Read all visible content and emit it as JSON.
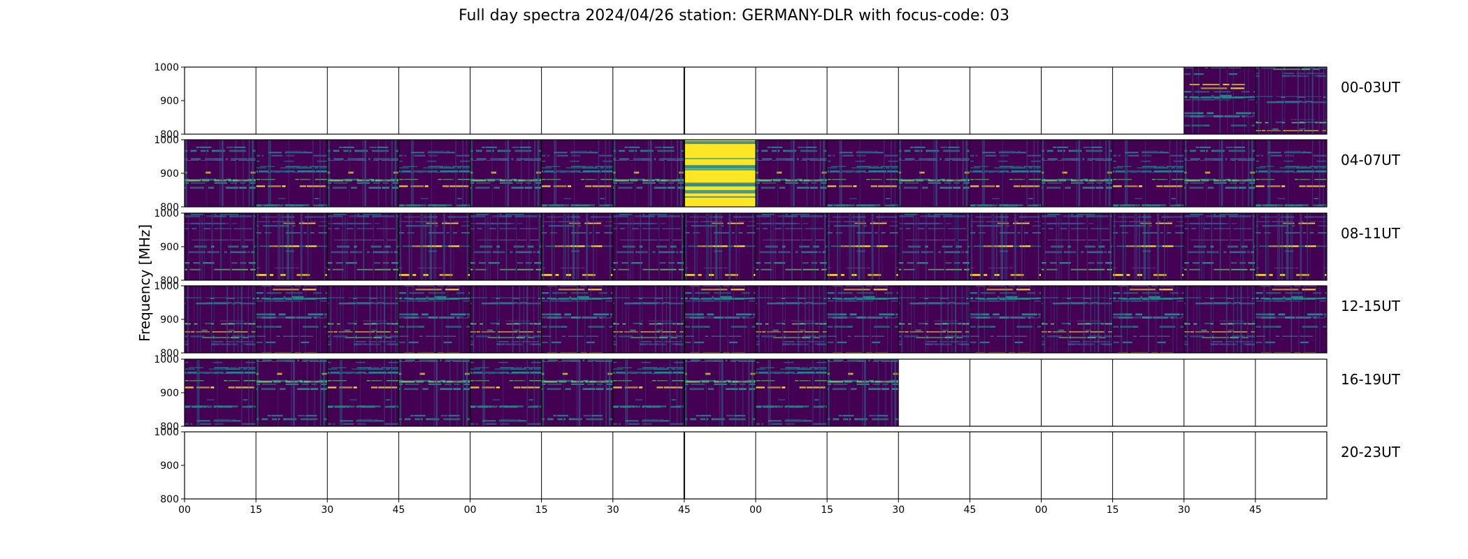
{
  "page": {
    "title": "Full day spectra 2024/04/26 station: GERMANY-DLR with focus-code: 03"
  },
  "colors": {
    "background_low": "#440154",
    "mid_teal": "#2a788e",
    "green": "#5ec962",
    "bright_yellow": "#fde725",
    "frame": "#000000"
  },
  "chart_data": {
    "type": "heatmap",
    "title": "Full day spectra 2024/04/26 station: GERMANY-DLR with focus-code: 03",
    "ylabel": "Frequency [MHz]",
    "ylim": [
      800,
      1000
    ],
    "ytick_labels": [
      "800",
      "900",
      "1000"
    ],
    "xtick_labels": [
      "00",
      "15",
      "30",
      "45",
      "00",
      "15",
      "30",
      "45",
      "00",
      "15",
      "30",
      "45",
      "00",
      "15",
      "30",
      "45"
    ],
    "colormap": "viridis",
    "rows": [
      {
        "label": "00-03UT",
        "filled": [
          14,
          15
        ],
        "saturated": []
      },
      {
        "label": "04-07UT",
        "filled": [
          0,
          1,
          2,
          3,
          4,
          5,
          6,
          7,
          8,
          9,
          10,
          11,
          12,
          13,
          14,
          15
        ],
        "saturated": [
          7
        ]
      },
      {
        "label": "08-11UT",
        "filled": [
          0,
          1,
          2,
          3,
          4,
          5,
          6,
          7,
          8,
          9,
          10,
          11,
          12,
          13,
          14,
          15
        ],
        "saturated": []
      },
      {
        "label": "12-15UT",
        "filled": [
          0,
          1,
          2,
          3,
          4,
          5,
          6,
          7,
          8,
          9,
          10,
          11,
          12,
          13,
          14,
          15
        ],
        "saturated": []
      },
      {
        "label": "16-19UT",
        "filled": [
          0,
          1,
          2,
          3,
          4,
          5,
          6,
          7,
          8,
          9
        ],
        "saturated": []
      },
      {
        "label": "20-23UT",
        "filled": [],
        "saturated": []
      }
    ]
  }
}
